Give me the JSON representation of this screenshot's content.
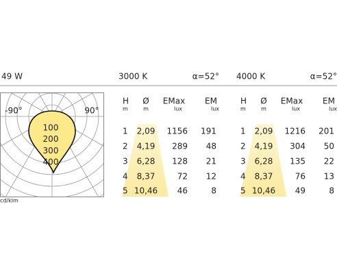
{
  "header": {
    "power": "49 W"
  },
  "polar": {
    "angles": [
      "-90°",
      "90°"
    ],
    "rings": [
      "100",
      "200",
      "300",
      "400"
    ],
    "unit": "cd/klm"
  },
  "tables": [
    {
      "cct": "3000 K",
      "beam": "α=52°",
      "columns": [
        "H",
        "Ø",
        "EMax",
        "EM"
      ],
      "units": [
        "m",
        "m",
        "lux",
        "lux"
      ],
      "rows": [
        [
          "1",
          "2,09",
          "1156",
          "191"
        ],
        [
          "2",
          "4,19",
          "289",
          "48"
        ],
        [
          "3",
          "6,28",
          "128",
          "21"
        ],
        [
          "4",
          "8,37",
          "72",
          "12"
        ],
        [
          "5",
          "10,46",
          "46",
          "8"
        ]
      ]
    },
    {
      "cct": "4000 K",
      "beam": "α=52°",
      "columns": [
        "H",
        "Ø",
        "EMax",
        "EM"
      ],
      "units": [
        "m",
        "m",
        "lux",
        "lux"
      ],
      "rows": [
        [
          "1",
          "2,09",
          "1216",
          "201"
        ],
        [
          "2",
          "4,19",
          "304",
          "50"
        ],
        [
          "3",
          "6,28",
          "135",
          "22"
        ],
        [
          "4",
          "8,37",
          "76",
          "13"
        ],
        [
          "5",
          "10,46",
          "49",
          "8"
        ]
      ]
    }
  ]
}
